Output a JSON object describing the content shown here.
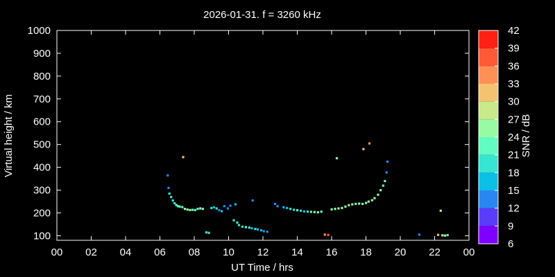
{
  "chart_data": {
    "type": "scatter",
    "title": "2026-01-31. f = 3260 kHz",
    "xlabel": "UT Time / hrs",
    "ylabel": "Virtual height / km",
    "colorbar_label": "SNR / dB",
    "xlim": [
      0,
      24
    ],
    "ylim": [
      80,
      1000
    ],
    "xticks": [
      "00",
      "02",
      "04",
      "06",
      "08",
      "10",
      "12",
      "14",
      "16",
      "18",
      "20",
      "22",
      "00"
    ],
    "yticks": [
      100,
      200,
      300,
      400,
      500,
      600,
      700,
      800,
      900,
      1000
    ],
    "colorbar": {
      "ticks": [
        6,
        9,
        12,
        15,
        18,
        21,
        24,
        27,
        30,
        33,
        36,
        39,
        42
      ],
      "colors": [
        "#7f00ff",
        "#5a3cfb",
        "#2a87f1",
        "#0cbfe6",
        "#36e6d2",
        "#62fbc2",
        "#98fba4",
        "#c9e98a",
        "#f4c270",
        "#ff9055",
        "#ff5a36",
        "#ff1f13"
      ]
    },
    "series": [
      {
        "points": [
          [
            6.45,
            365,
            12
          ],
          [
            6.5,
            310,
            12
          ],
          [
            6.55,
            285,
            18
          ],
          [
            6.65,
            270,
            18
          ],
          [
            6.75,
            255,
            18
          ],
          [
            6.85,
            243,
            18
          ],
          [
            6.95,
            235,
            21
          ],
          [
            7.05,
            230,
            21
          ],
          [
            7.15,
            228,
            21
          ],
          [
            7.3,
            226,
            21
          ],
          [
            7.35,
            445,
            30
          ],
          [
            7.45,
            218,
            24
          ],
          [
            7.6,
            215,
            24
          ],
          [
            7.75,
            213,
            24
          ],
          [
            7.9,
            214,
            21
          ],
          [
            8.05,
            213,
            21
          ],
          [
            8.2,
            218,
            21
          ],
          [
            8.35,
            220,
            24
          ],
          [
            8.5,
            218,
            21
          ],
          [
            8.7,
            115,
            18
          ],
          [
            8.85,
            113,
            18
          ],
          [
            9.0,
            222,
            18
          ],
          [
            9.15,
            225,
            15
          ],
          [
            9.3,
            220,
            18
          ],
          [
            9.45,
            212,
            12
          ],
          [
            9.6,
            208,
            15
          ],
          [
            9.75,
            230,
            12
          ],
          [
            9.95,
            220,
            12
          ],
          [
            10.1,
            232,
            12
          ],
          [
            10.3,
            168,
            18
          ],
          [
            10.4,
            238,
            15
          ],
          [
            10.5,
            158,
            18
          ],
          [
            10.6,
            147,
            18
          ],
          [
            10.8,
            140,
            18
          ],
          [
            11.0,
            138,
            21
          ],
          [
            11.2,
            136,
            18
          ],
          [
            11.35,
            133,
            15
          ],
          [
            11.4,
            255,
            12
          ],
          [
            11.55,
            130,
            18
          ],
          [
            11.7,
            128,
            15
          ],
          [
            11.9,
            124,
            15
          ],
          [
            12.05,
            120,
            12
          ],
          [
            12.25,
            118,
            12
          ],
          [
            12.7,
            240,
            12
          ],
          [
            12.85,
            230,
            12
          ],
          [
            13.2,
            225,
            15
          ],
          [
            13.4,
            222,
            15
          ],
          [
            13.6,
            218,
            18
          ],
          [
            13.8,
            214,
            18
          ],
          [
            14.0,
            212,
            21
          ],
          [
            14.2,
            210,
            18
          ],
          [
            14.4,
            207,
            15
          ],
          [
            14.6,
            206,
            18
          ],
          [
            14.8,
            205,
            21
          ],
          [
            15.0,
            204,
            24
          ],
          [
            15.2,
            203,
            24
          ],
          [
            15.4,
            206,
            21
          ],
          [
            15.6,
            105,
            33
          ],
          [
            15.8,
            104,
            36
          ],
          [
            16.0,
            216,
            24
          ],
          [
            16.2,
            218,
            24
          ],
          [
            16.3,
            440,
            24
          ],
          [
            16.4,
            220,
            24
          ],
          [
            16.6,
            222,
            24
          ],
          [
            16.8,
            228,
            24
          ],
          [
            17.0,
            234,
            24
          ],
          [
            17.2,
            238,
            24
          ],
          [
            17.4,
            240,
            24
          ],
          [
            17.6,
            241,
            24
          ],
          [
            17.8,
            240,
            24
          ],
          [
            17.85,
            480,
            30
          ],
          [
            18.0,
            244,
            24
          ],
          [
            18.15,
            250,
            24
          ],
          [
            18.2,
            505,
            33
          ],
          [
            18.35,
            256,
            24
          ],
          [
            18.5,
            265,
            24
          ],
          [
            18.7,
            280,
            24
          ],
          [
            18.85,
            300,
            24
          ],
          [
            19.0,
            320,
            21
          ],
          [
            19.1,
            340,
            21
          ],
          [
            19.2,
            378,
            12
          ],
          [
            19.25,
            425,
            12
          ],
          [
            21.1,
            105,
            12
          ],
          [
            22.2,
            104,
            30
          ],
          [
            22.35,
            210,
            27
          ],
          [
            22.45,
            102,
            27
          ],
          [
            22.6,
            101,
            24
          ],
          [
            22.75,
            103,
            21
          ]
        ]
      }
    ]
  }
}
